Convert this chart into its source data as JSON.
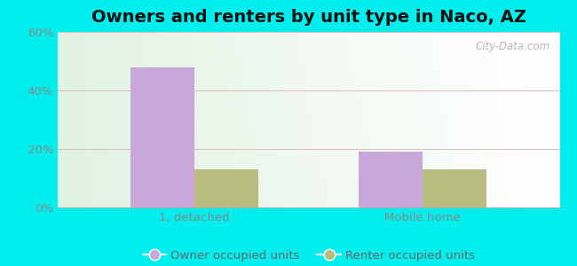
{
  "title": "Owners and renters by unit type in Naco, AZ",
  "categories": [
    "1, detached",
    "Mobile home"
  ],
  "series": [
    {
      "label": "Owner occupied units",
      "values": [
        48,
        19
      ],
      "color": "#c8a8d8"
    },
    {
      "label": "Renter occupied units",
      "values": [
        13,
        13
      ],
      "color": "#b8bc80"
    }
  ],
  "ylim": [
    0,
    60
  ],
  "yticks": [
    0,
    20,
    40,
    60
  ],
  "ytick_labels": [
    "0%",
    "20%",
    "40%",
    "60%"
  ],
  "bar_width": 0.28,
  "outer_background": "#00eeee",
  "watermark": "City-Data.com",
  "title_fontsize": 14,
  "tick_fontsize": 9.5,
  "legend_fontsize": 9.5
}
